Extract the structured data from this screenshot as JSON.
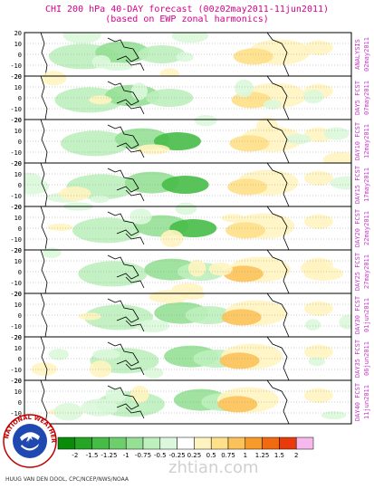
{
  "header": {
    "title_line1": "CHI 200 hPa 40-DAY forecast (00z02may2011-11jun2011)",
    "title_line2": "(based on EWP zonal harmonics)"
  },
  "chart_data": {
    "type": "heatmap",
    "panels": [
      {
        "label_line1": "ANALYSIS",
        "label_line2": "02may2011"
      },
      {
        "label_line1": "DAY5 FCST",
        "label_line2": "07may2011"
      },
      {
        "label_line1": "DAY10 FCST",
        "label_line2": "12may2011"
      },
      {
        "label_line1": "DAY15 FCST",
        "label_line2": "17may2011"
      },
      {
        "label_line1": "DAY20 FCST",
        "label_line2": "22may2011"
      },
      {
        "label_line1": "DAY25 FCST",
        "label_line2": "27may2011"
      },
      {
        "label_line1": "DAY30 FCST",
        "label_line2": "01jun2011"
      },
      {
        "label_line1": "DAY35 FCST",
        "label_line2": "06jun2011"
      },
      {
        "label_line1": "DAY40 FCST",
        "label_line2": "11jun2011"
      }
    ],
    "y_ticks": [
      "20",
      "10",
      "0",
      "-10",
      "-20"
    ],
    "ylim": [
      -20,
      20
    ],
    "colorbar": {
      "tick_labels": [
        "-2",
        "-1.5",
        "-1.25",
        "-1",
        "-0.75",
        "-0.5",
        "-0.25",
        "0.25",
        "0.5",
        "0.75",
        "1",
        "1.25",
        "1.5",
        "2"
      ],
      "colors": [
        "#0a8c0a",
        "#24a524",
        "#46bc46",
        "#6ccf6c",
        "#96e096",
        "#bdf0bd",
        "#dcf8dc",
        "#ffffff",
        "#fff4c0",
        "#ffe08a",
        "#fcc25a",
        "#f79a2a",
        "#ef6a10",
        "#e83a0a",
        "#f7b8ec"
      ]
    },
    "colors": {
      "title": "#d4008a",
      "panel_label": "#cc33cc",
      "coast": "#000000",
      "grid": "#999999"
    }
  },
  "footer": {
    "credit": "HUUG VAN DEN DOOL, CPC/NCEP/NWS/NOAA",
    "watermark": "zhtian.com"
  },
  "logo": {
    "ring_text": "NATIONAL WEATHER SERVICE"
  }
}
